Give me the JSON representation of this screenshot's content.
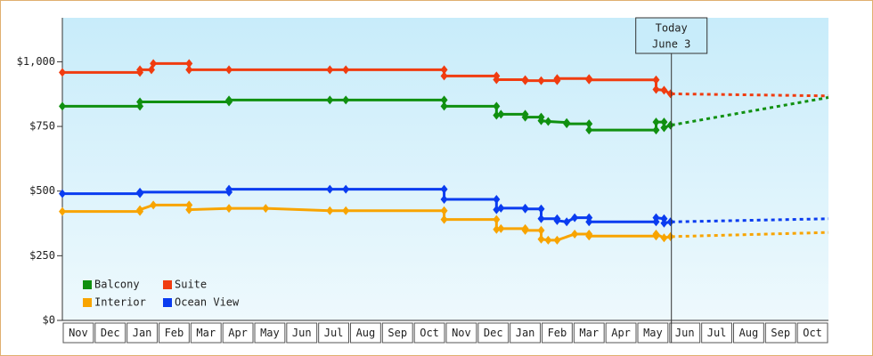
{
  "chart_data": {
    "type": "line",
    "categories": [
      "Nov",
      "Dec",
      "Jan",
      "Feb",
      "Mar",
      "Apr",
      "May",
      "Jun",
      "Jul",
      "Aug",
      "Sep",
      "Oct",
      "Nov",
      "Dec",
      "Jan",
      "Feb",
      "Mar",
      "Apr",
      "May",
      "Jun",
      "Jul",
      "Aug",
      "Sep",
      "Oct"
    ],
    "xlim": [
      0,
      24
    ],
    "ylim": [
      0,
      1170
    ],
    "yticks": [
      {
        "value": 0,
        "label": "$0"
      },
      {
        "value": 250,
        "label": "$250"
      },
      {
        "value": 500,
        "label": "$500"
      },
      {
        "value": 750,
        "label": "$750"
      },
      {
        "value": 1000,
        "label": "$1,000"
      }
    ],
    "annotation": {
      "x": 19.08,
      "lines": [
        "Today",
        "June 3"
      ]
    },
    "series": [
      {
        "name": "Balcony",
        "color": "#109010",
        "x": [
          0,
          2.43,
          2.43,
          5.22,
          5.22,
          8.38,
          8.88,
          11.96,
          11.96,
          13.6,
          13.6,
          13.74,
          14.5,
          14.5,
          15,
          15,
          15.22,
          15.8,
          15.8,
          16.5,
          16.5,
          18.6,
          18.6,
          18.85,
          18.85,
          19.05
        ],
        "values": [
          828,
          828,
          845,
          845,
          852,
          852,
          852,
          852,
          828,
          828,
          793,
          797,
          797,
          786,
          786,
          772,
          769,
          765,
          760,
          760,
          736,
          736,
          767,
          767,
          745,
          755
        ],
        "projection": {
          "x": [
            19.08,
            24
          ],
          "values": [
            755,
            862
          ]
        }
      },
      {
        "name": "Suite",
        "color": "#f03c10",
        "x": [
          0,
          2.43,
          2.43,
          2.79,
          2.85,
          3.97,
          3.97,
          5.22,
          8.38,
          8.88,
          11.96,
          11.96,
          13.6,
          13.6,
          14.5,
          14.5,
          15,
          15.5,
          15.5,
          16.5,
          16.5,
          18.6,
          18.6,
          18.85,
          19.05
        ],
        "values": [
          959,
          959,
          969,
          969,
          993,
          993,
          969,
          969,
          969,
          969,
          969,
          945,
          945,
          931,
          931,
          927,
          927,
          927,
          935,
          935,
          930,
          930,
          893,
          890,
          876
        ],
        "projection": {
          "x": [
            19.08,
            24
          ],
          "values": [
            876,
            868
          ]
        }
      },
      {
        "name": "Interior",
        "color": "#f8a400",
        "x": [
          0,
          2.43,
          2.43,
          2.85,
          3.97,
          3.97,
          5.22,
          6.37,
          8.38,
          8.88,
          11.96,
          11.96,
          13.6,
          13.6,
          13.74,
          14.5,
          14.5,
          15,
          15,
          15.22,
          15.5,
          16.05,
          16.5,
          16.5,
          18.6,
          18.6,
          18.85,
          19.05
        ],
        "values": [
          421,
          421,
          428,
          446,
          446,
          428,
          433,
          433,
          424,
          424,
          424,
          390,
          390,
          352,
          355,
          355,
          348,
          348,
          314,
          310,
          310,
          334,
          334,
          326,
          326,
          334,
          319,
          324
        ],
        "projection": {
          "x": [
            19.08,
            24
          ],
          "values": [
            324,
            340
          ]
        }
      },
      {
        "name": "Ocean View",
        "color": "#0a3cf0",
        "x": [
          0,
          2.43,
          2.43,
          5.22,
          5.22,
          8.38,
          8.88,
          11.96,
          11.96,
          13.6,
          13.6,
          13.74,
          14.5,
          14.5,
          15,
          15,
          15.5,
          15.5,
          15.8,
          16.05,
          16.5,
          16.5,
          18.6,
          18.6,
          18.85,
          18.85,
          19.05
        ],
        "values": [
          490,
          490,
          496,
          496,
          507,
          507,
          507,
          507,
          468,
          468,
          428,
          434,
          434,
          431,
          431,
          393,
          393,
          386,
          381,
          397,
          397,
          381,
          381,
          397,
          393,
          376,
          381
        ],
        "projection": {
          "x": [
            19.08,
            24
          ],
          "values": [
            381,
            393
          ]
        }
      }
    ]
  }
}
